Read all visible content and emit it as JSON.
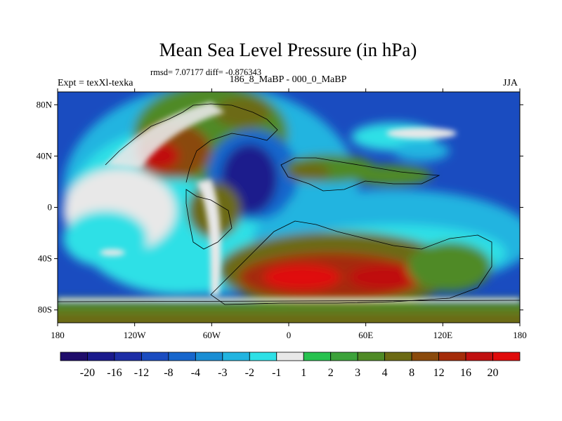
{
  "header": {
    "title": "Mean Sea Level Pressure (in hPa)",
    "stats": "rmsd= 7.07177 diff= -0.876343",
    "experiment": "Expt = texXl-texka",
    "period": "186_8_MaBP - 000_0_MaBP",
    "season": "JJA"
  },
  "axes": {
    "x_ticks": [
      {
        "value": -180,
        "label": "180"
      },
      {
        "value": -120,
        "label": "120W"
      },
      {
        "value": -60,
        "label": "60W"
      },
      {
        "value": 0,
        "label": "0"
      },
      {
        "value": 60,
        "label": "60E"
      },
      {
        "value": 120,
        "label": "120E"
      },
      {
        "value": 180,
        "label": "180"
      }
    ],
    "y_ticks": [
      {
        "value": 80,
        "label": "80N"
      },
      {
        "value": 40,
        "label": "40N"
      },
      {
        "value": 0,
        "label": "0"
      },
      {
        "value": -40,
        "label": "40S"
      },
      {
        "value": -80,
        "label": "80S"
      }
    ],
    "lon_range": [
      -180,
      180
    ],
    "lat_range": [
      -90,
      90
    ]
  },
  "colorbar": {
    "colors": [
      "#1f0d6b",
      "#1a1a8c",
      "#1d2ea6",
      "#1a4cc0",
      "#1766cc",
      "#1a8ed4",
      "#22b4e0",
      "#2ee0e6",
      "#e8e8e8",
      "#27c24f",
      "#3ca23a",
      "#4f8a26",
      "#6c6a14",
      "#8a4a0c",
      "#a42c0a",
      "#c01010",
      "#e00b0b"
    ],
    "labels": [
      "-20",
      "-16",
      "-12",
      "-8",
      "-4",
      "-3",
      "-2",
      "-1",
      "1",
      "2",
      "3",
      "4",
      "8",
      "12",
      "16",
      "20"
    ]
  }
}
